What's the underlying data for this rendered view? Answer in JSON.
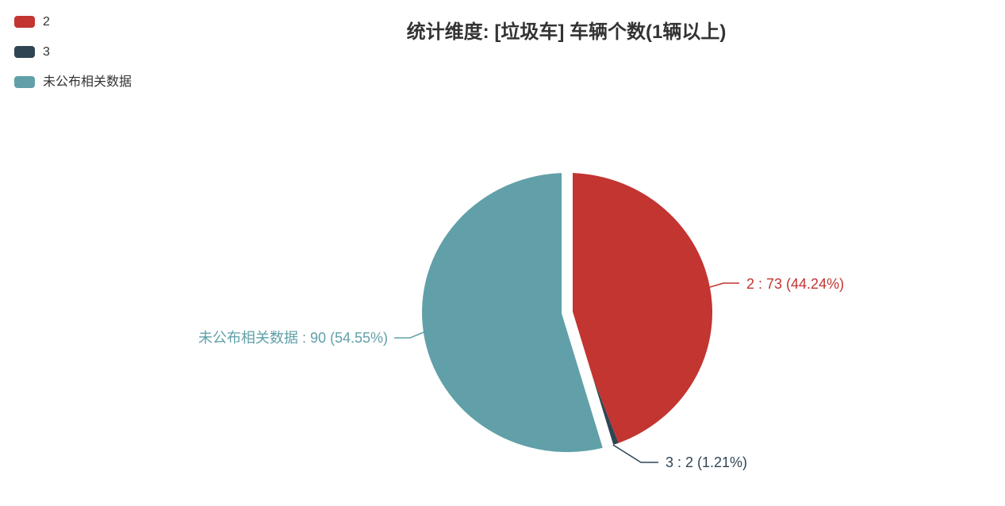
{
  "title": "统计维度: [垃圾车] 车辆个数(1辆以上)",
  "legend": {
    "items": [
      {
        "label": "2",
        "color": "#c23531"
      },
      {
        "label": "3",
        "color": "#2f4554"
      },
      {
        "label": "未公布相关数据",
        "color": "#61a0a8"
      }
    ]
  },
  "chart_data": {
    "type": "pie",
    "title": "统计维度: [垃圾车] 车辆个数(1辆以上)",
    "start_angle": "top",
    "direction": "clockwise",
    "legend_position": "top-left",
    "label_style": "outside-callout",
    "slices": [
      {
        "name": "2",
        "value": 73,
        "percent": 44.24,
        "color": "#c23531",
        "callout": "2 : 73 (44.24%)"
      },
      {
        "name": "3",
        "value": 2,
        "percent": 1.21,
        "color": "#2f4554",
        "callout": "3 : 2 (1.21%)"
      },
      {
        "name": "未公布相关数据",
        "value": 90,
        "percent": 54.55,
        "color": "#61a0a8",
        "callout": "未公布相关数据 : 90 (54.55%)"
      }
    ]
  },
  "colors": {
    "background": "#ffffff",
    "title_text": "#333333",
    "legend_text": "#333333",
    "slice_separator": "#ffffff"
  }
}
